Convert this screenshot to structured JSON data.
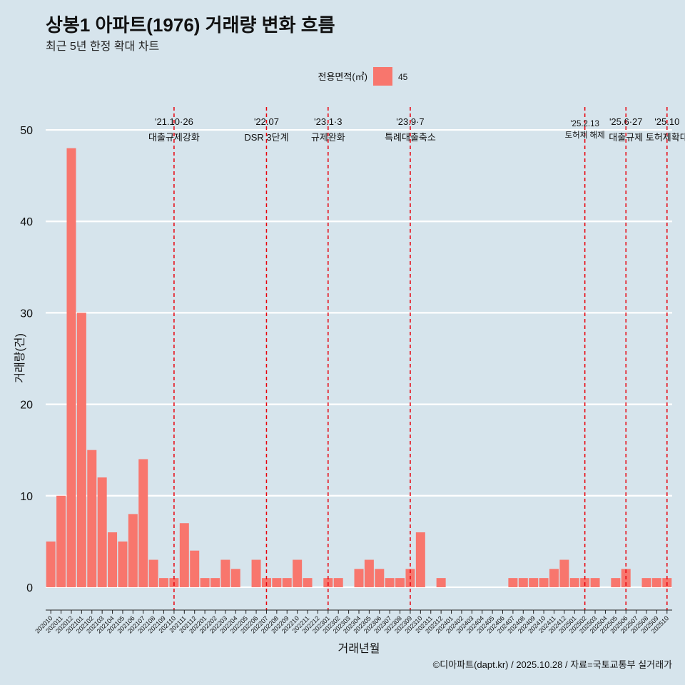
{
  "chart_data": {
    "type": "bar",
    "title": "상봉1 아파트(1976) 거래량 변화 흐름",
    "subtitle": "최근 5년 한정 확대 차트",
    "xlabel": "거래년월",
    "ylabel": "거래량(건)",
    "caption": "©디아파트(dapt.kr) / 2025.10.28 / 자료=국토교통부 실거래가",
    "legend": {
      "title": "전용면적(㎡)",
      "label": "45",
      "color": "#f8766d",
      "position": "top"
    },
    "ylim": [
      -2.5,
      52.5
    ],
    "yticks": [
      0,
      10,
      20,
      30,
      40,
      50
    ],
    "categories": [
      "202010",
      "202011",
      "202012",
      "202101",
      "202102",
      "202103",
      "202104",
      "202105",
      "202106",
      "202107",
      "202108",
      "202109",
      "202110",
      "202111",
      "202112",
      "202201",
      "202202",
      "202203",
      "202204",
      "202205",
      "202206",
      "202207",
      "202208",
      "202209",
      "202210",
      "202211",
      "202212",
      "202301",
      "202302",
      "202303",
      "202304",
      "202305",
      "202306",
      "202307",
      "202308",
      "202309",
      "202310",
      "202311",
      "202312",
      "202401",
      "202402",
      "202403",
      "202404",
      "202405",
      "202406",
      "202407",
      "202408",
      "202409",
      "202410",
      "202411",
      "202412",
      "202501",
      "202502",
      "202503",
      "202504",
      "202505",
      "202506",
      "202507",
      "202508",
      "202509",
      "202510"
    ],
    "values": [
      5,
      10,
      48,
      30,
      15,
      12,
      6,
      5,
      8,
      14,
      3,
      1,
      1,
      7,
      4,
      1,
      1,
      3,
      2,
      0,
      3,
      1,
      1,
      1,
      3,
      1,
      0,
      1,
      1,
      0,
      2,
      3,
      2,
      1,
      1,
      2,
      6,
      0,
      1,
      0,
      0,
      0,
      0,
      0,
      0,
      1,
      1,
      1,
      1,
      2,
      3,
      1,
      1,
      1,
      0,
      1,
      2,
      0,
      1,
      1,
      1
    ],
    "events": [
      {
        "date": "'21.10·26",
        "label": "대출규제강화",
        "position": 12.0,
        "row": 0
      },
      {
        "date": "'22.07",
        "label": "DSR 3단계",
        "position": 21.0,
        "row": 0
      },
      {
        "date": "'23.1·3",
        "label": "규제완화",
        "position": 27.0,
        "row": 0
      },
      {
        "date": "'23.9·7",
        "label": "특례대출축소",
        "position": 35.0,
        "row": 0
      },
      {
        "date": "'25.2.13",
        "label": "토허제 해제",
        "position": 52.0,
        "row": 1
      },
      {
        "date": "'25.6·27",
        "label": "대출규제",
        "position": 56.0,
        "row": 0
      },
      {
        "date": "'25.10",
        "label": "토허제확대",
        "position": 60.0,
        "row": 0
      }
    ],
    "colors": {
      "bar": "#f8766d",
      "vline": "#e8000b",
      "grid": "#ffffff",
      "background": "#d6e4ec"
    }
  }
}
